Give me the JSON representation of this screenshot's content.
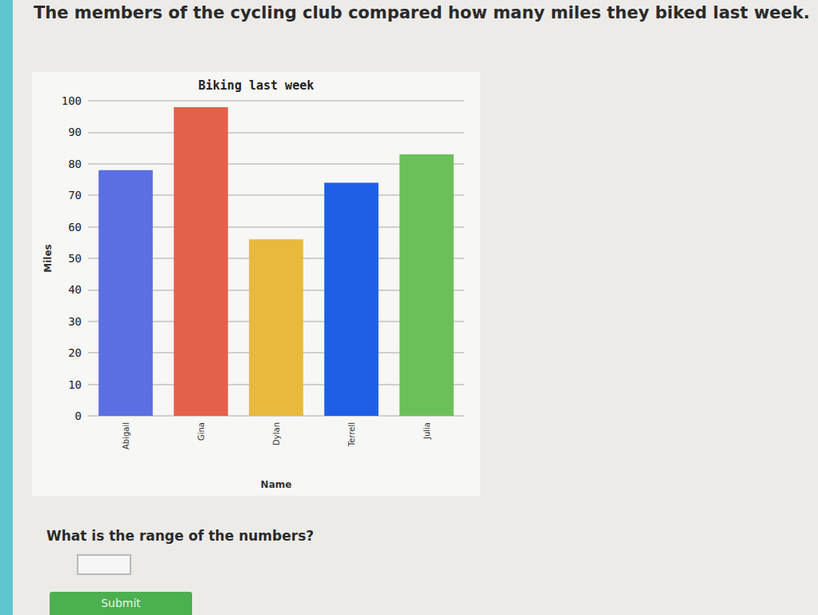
{
  "header": "The members of the cycling club compared how many miles they biked last week.",
  "chart_data": {
    "type": "bar",
    "title": "Biking last week",
    "x_label": "Name",
    "y_label": "Miles",
    "categories": [
      "Abigail",
      "Gina",
      "Dylan",
      "Terrell",
      "Julia"
    ],
    "values": [
      78,
      98,
      56,
      74,
      83
    ],
    "colors": [
      "#5b6fe0",
      "#e4604a",
      "#e8b93c",
      "#1f5fe8",
      "#6cc05a"
    ],
    "ylim": [
      0,
      100
    ],
    "yticks": [
      0,
      10,
      20,
      30,
      40,
      50,
      60,
      70,
      80,
      90,
      100
    ],
    "grid": true
  },
  "question": "What is the range of the numbers?",
  "button": "Submit"
}
